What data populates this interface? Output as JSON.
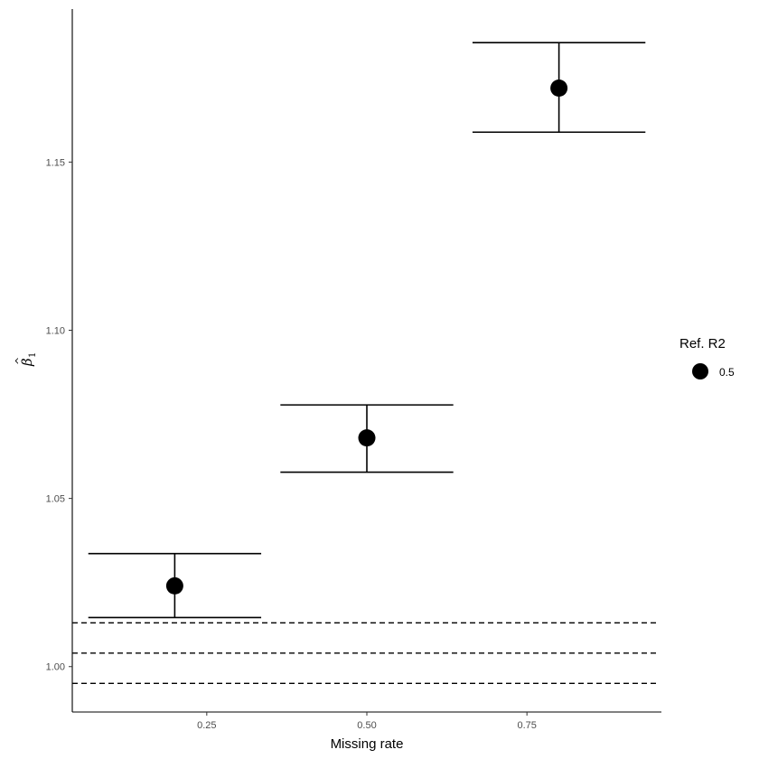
{
  "chart_data": {
    "type": "scatter",
    "title": "",
    "xlabel": "Missing rate",
    "ylabel": {
      "symbol": "β",
      "hat": "^",
      "subscript": "1"
    },
    "xlim": [
      0.04,
      0.96
    ],
    "ylim": [
      0.9865,
      1.1955
    ],
    "x_ticks": [
      0.25,
      0.5,
      0.75
    ],
    "x_tick_labels": [
      "0.25",
      "0.50",
      "0.75"
    ],
    "y_ticks": [
      1.0,
      1.05,
      1.1,
      1.15
    ],
    "y_tick_labels": [
      "1.00",
      "1.05",
      "1.10",
      "1.15"
    ],
    "grid": false,
    "points": [
      {
        "x": 0.2,
        "y": 1.024,
        "ymin": 1.0146,
        "ymax": 1.0336
      },
      {
        "x": 0.5,
        "y": 1.068,
        "ymin": 1.0578,
        "ymax": 1.0778
      },
      {
        "x": 0.8,
        "y": 1.172,
        "ymin": 1.1589,
        "ymax": 1.1855
      }
    ],
    "errorbar_width": 0.27,
    "reference_lines": [
      1.013,
      1.004,
      0.995
    ],
    "reference_line_style": "dashed",
    "legend": {
      "title": "Ref. R2",
      "entries": [
        "0.5"
      ],
      "position": "right"
    },
    "point_color": "#000000"
  }
}
